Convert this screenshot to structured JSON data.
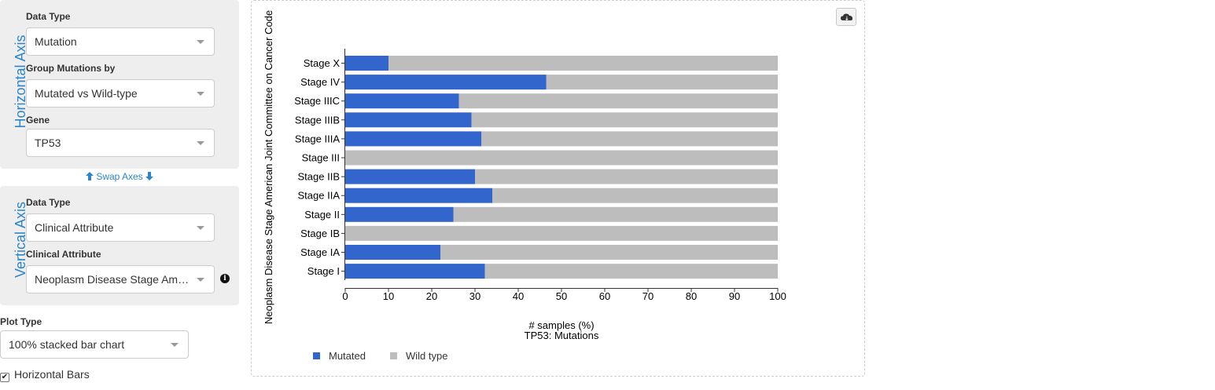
{
  "horizontal_axis": {
    "title": "Horizontal Axis",
    "data_type_label": "Data Type",
    "data_type_value": "Mutation",
    "group_by_label": "Group Mutations by",
    "group_by_value": "Mutated vs Wild-type",
    "gene_label": "Gene",
    "gene_value": "TP53"
  },
  "swap_axes_label": "Swap Axes",
  "vertical_axis": {
    "title": "Vertical Axis",
    "data_type_label": "Data Type",
    "data_type_value": "Clinical Attribute",
    "clinical_attribute_label": "Clinical Attribute",
    "clinical_attribute_value": "Neoplasm Disease Stage American Joint Committee on Cancer Code"
  },
  "plot_type": {
    "label": "Plot Type",
    "value": "100% stacked bar chart"
  },
  "horizontal_bars": {
    "label": "Horizontal Bars",
    "checked": true
  },
  "icons": {
    "swap_up": "arrow-up-icon",
    "swap_down": "arrow-down-icon",
    "info": "info-icon",
    "download": "cloud-download-icon"
  },
  "chart_data": {
    "type": "bar",
    "orientation": "horizontal",
    "stacked": "percent",
    "categories": [
      "Stage X",
      "Stage IV",
      "Stage IIIC",
      "Stage IIIB",
      "Stage IIIA",
      "Stage III",
      "Stage IIB",
      "Stage IIA",
      "Stage II",
      "Stage IB",
      "Stage IA",
      "Stage I"
    ],
    "series": [
      {
        "name": "Mutated",
        "color": "#3366cc",
        "values": [
          10,
          46.5,
          26.3,
          29.2,
          31.5,
          0,
          30,
          34,
          25,
          0,
          22,
          32.3
        ]
      },
      {
        "name": "Wild type",
        "color": "#bdbdbd",
        "values": [
          90,
          53.5,
          73.7,
          70.8,
          68.5,
          100,
          70,
          66,
          75,
          100,
          78,
          67.7
        ]
      }
    ],
    "xlim": [
      0,
      100
    ],
    "xticks": [
      0,
      10,
      20,
      30,
      40,
      50,
      60,
      70,
      80,
      90,
      100
    ],
    "xlabel": "# samples (%)",
    "subtitle": "TP53: Mutations",
    "ylabel": "Neoplasm Disease Stage American Joint Committee on Cancer Code",
    "legend_position": "bottom-left",
    "grid": false
  }
}
